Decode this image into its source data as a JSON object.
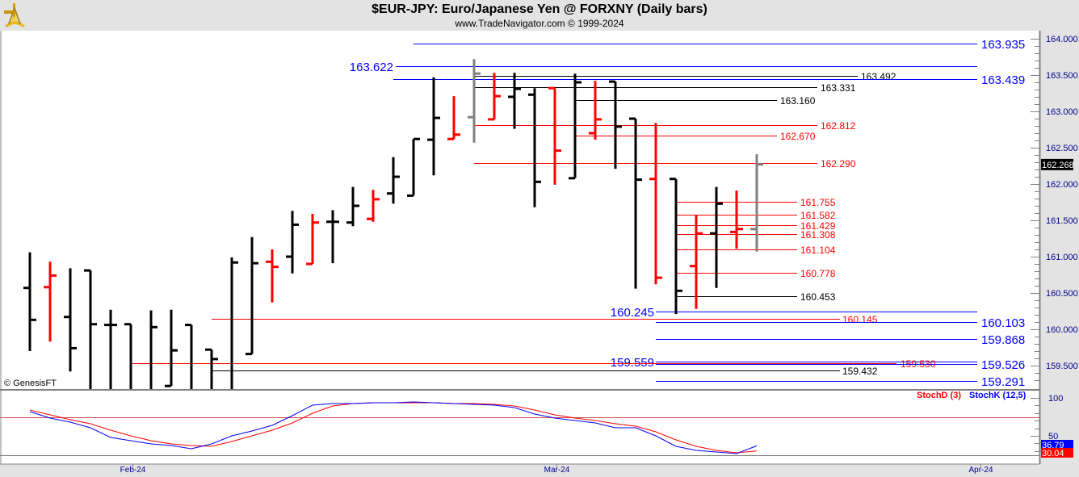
{
  "header": {
    "title": "$EUR-JPY:  Euro/Japanese Yen @ FORXNY  (Daily bars)",
    "subtitle": "www.TradeNavigator.com © 1999-2024",
    "logo_icon": "sextant-logo-icon"
  },
  "watermark": "© GenesisFT",
  "colors": {
    "up": "#000000",
    "down": "#ff0000",
    "current": "#808080",
    "blue": "#0000ff",
    "red": "#ff0000",
    "axis_bg": "#e3e3e3"
  },
  "chart_data": [
    {
      "type": "ohlc",
      "title": "$EUR-JPY:  Euro/Japanese Yen @ FORXNY  (Daily bars)",
      "ylim": [
        159.2,
        164.1
      ],
      "y_ticks": [
        "164.000",
        "163.500",
        "163.000",
        "162.500",
        "162.000",
        "161.500",
        "161.000",
        "160.500",
        "160.000",
        "159.500"
      ],
      "x_ticks": [
        {
          "label": "Feb-24",
          "bar": 5.1
        },
        {
          "label": "Mar-24",
          "bar": 26.1
        },
        {
          "label": "Apr-24",
          "bar": 47.1
        }
      ],
      "last_price": "162.268",
      "bars": [
        {
          "o": 160.57,
          "h": 161.06,
          "l": 159.7,
          "c": 160.13,
          "color": "black"
        },
        {
          "o": 160.58,
          "h": 160.93,
          "l": 159.83,
          "c": 160.74,
          "color": "red"
        },
        {
          "o": 160.17,
          "h": 160.84,
          "l": 159.42,
          "c": 159.74,
          "color": "black"
        },
        {
          "o": 160.81,
          "h": 160.81,
          "l": 159.1,
          "c": 160.07,
          "color": "black"
        },
        {
          "o": 160.06,
          "h": 160.27,
          "l": 159.1,
          "c": 160.06,
          "color": "black"
        },
        {
          "o": 160.07,
          "h": 160.07,
          "l": 159.1,
          "c": 159.15,
          "color": "black"
        },
        {
          "o": 159.15,
          "h": 160.26,
          "l": 159.1,
          "c": 160.03,
          "color": "black"
        },
        {
          "o": 159.22,
          "h": 160.27,
          "l": 159.22,
          "c": 159.71,
          "color": "black"
        },
        {
          "o": 160.06,
          "h": 160.06,
          "l": 159.1,
          "c": 159.15,
          "color": "black"
        },
        {
          "o": 159.72,
          "h": 159.72,
          "l": 159.1,
          "c": 159.59,
          "color": "black"
        },
        {
          "o": 159.15,
          "h": 160.99,
          "l": 159.1,
          "c": 160.92,
          "color": "black"
        },
        {
          "o": 159.66,
          "h": 161.27,
          "l": 159.66,
          "c": 160.91,
          "color": "black"
        },
        {
          "o": 160.93,
          "h": 161.1,
          "l": 160.37,
          "c": 160.86,
          "color": "red"
        },
        {
          "o": 161.0,
          "h": 161.63,
          "l": 160.77,
          "c": 161.44,
          "color": "black"
        },
        {
          "o": 160.9,
          "h": 161.59,
          "l": 160.9,
          "c": 161.47,
          "color": "red"
        },
        {
          "o": 161.48,
          "h": 161.64,
          "l": 160.91,
          "c": 161.48,
          "color": "black"
        },
        {
          "o": 161.47,
          "h": 161.96,
          "l": 161.42,
          "c": 161.7,
          "color": "black"
        },
        {
          "o": 161.52,
          "h": 161.92,
          "l": 161.48,
          "c": 161.79,
          "color": "red"
        },
        {
          "o": 161.87,
          "h": 162.37,
          "l": 161.73,
          "c": 162.1,
          "color": "black"
        },
        {
          "o": 161.84,
          "h": 162.62,
          "l": 161.84,
          "c": 162.62,
          "color": "black"
        },
        {
          "o": 162.61,
          "h": 163.47,
          "l": 162.12,
          "c": 162.91,
          "color": "black"
        },
        {
          "o": 162.62,
          "h": 163.21,
          "l": 162.62,
          "c": 162.68,
          "color": "red"
        },
        {
          "o": 162.92,
          "h": 163.72,
          "l": 162.57,
          "c": 163.52,
          "color": "gray"
        },
        {
          "o": 162.89,
          "h": 163.53,
          "l": 162.89,
          "c": 163.21,
          "color": "red"
        },
        {
          "o": 163.2,
          "h": 163.53,
          "l": 162.76,
          "c": 163.31,
          "color": "black"
        },
        {
          "o": 163.23,
          "h": 163.32,
          "l": 161.68,
          "c": 162.03,
          "color": "black"
        },
        {
          "o": 163.32,
          "h": 163.32,
          "l": 161.99,
          "c": 162.46,
          "color": "red"
        },
        {
          "o": 162.08,
          "h": 163.52,
          "l": 162.08,
          "c": 163.4,
          "color": "black"
        },
        {
          "o": 162.7,
          "h": 163.42,
          "l": 162.61,
          "c": 162.89,
          "color": "red"
        },
        {
          "o": 163.41,
          "h": 163.41,
          "l": 162.21,
          "c": 162.79,
          "color": "black"
        },
        {
          "o": 162.9,
          "h": 162.9,
          "l": 160.56,
          "c": 162.06,
          "color": "black"
        },
        {
          "o": 162.07,
          "h": 162.84,
          "l": 160.62,
          "c": 160.71,
          "color": "red"
        },
        {
          "o": 162.07,
          "h": 162.07,
          "l": 160.21,
          "c": 160.53,
          "color": "black"
        },
        {
          "o": 160.87,
          "h": 161.57,
          "l": 160.28,
          "c": 161.32,
          "color": "red"
        },
        {
          "o": 161.32,
          "h": 161.96,
          "l": 160.57,
          "c": 161.73,
          "color": "black"
        },
        {
          "o": 161.34,
          "h": 161.91,
          "l": 161.11,
          "c": 161.38,
          "color": "red"
        },
        {
          "o": 161.38,
          "h": 162.41,
          "l": 161.07,
          "c": 162.27,
          "color": "gray"
        }
      ],
      "levels": [
        {
          "price": 163.935,
          "label": "163.935",
          "color": "blue"
        },
        {
          "price": 163.622,
          "label": "163.622",
          "color": "blue"
        },
        {
          "price": 163.492,
          "label": "163.492",
          "color": "black"
        },
        {
          "price": 163.439,
          "label": "163.439",
          "color": "blue"
        },
        {
          "price": 163.331,
          "label": "163.331",
          "color": "black"
        },
        {
          "price": 163.16,
          "label": "163.160",
          "color": "black"
        },
        {
          "price": 162.812,
          "label": "162.812",
          "color": "red"
        },
        {
          "price": 162.67,
          "label": "162.670",
          "color": "red"
        },
        {
          "price": 162.29,
          "label": "162.290",
          "color": "red"
        },
        {
          "price": 161.755,
          "label": "161.755",
          "color": "red"
        },
        {
          "price": 161.582,
          "label": "161.582",
          "color": "red"
        },
        {
          "price": 161.429,
          "label": "161.429",
          "color": "red"
        },
        {
          "price": 161.308,
          "label": "161.308",
          "color": "red"
        },
        {
          "price": 161.104,
          "label": "161.104",
          "color": "red"
        },
        {
          "price": 160.778,
          "label": "160.778",
          "color": "red"
        },
        {
          "price": 160.453,
          "label": "160.453",
          "color": "black"
        },
        {
          "price": 160.245,
          "label": "160.245",
          "color": "blue"
        },
        {
          "price": 160.145,
          "label": "160.145",
          "color": "red"
        },
        {
          "price": 160.103,
          "label": "160.103",
          "color": "blue"
        },
        {
          "price": 159.868,
          "label": "159.868",
          "color": "blue"
        },
        {
          "price": 159.559,
          "label": "159.559",
          "color": "blue"
        },
        {
          "price": 159.53,
          "label": "159.530",
          "color": "red"
        },
        {
          "price": 159.526,
          "label": "159.526",
          "color": "blue"
        },
        {
          "price": 159.432,
          "label": "159.432",
          "color": "black"
        },
        {
          "price": 159.291,
          "label": "159.291",
          "color": "blue"
        }
      ]
    },
    {
      "type": "line",
      "ylim": [
        0,
        100
      ],
      "y_ticks": [
        "100",
        "50"
      ],
      "series": [
        {
          "name": "StochD (3)",
          "color": "#ff0000",
          "last": "30.04",
          "values": [
            84.0,
            77.7,
            71.3,
            66.0,
            57.4,
            50.0,
            43.6,
            39.4,
            37.2,
            36.2,
            42.6,
            50.0,
            57.4,
            67.0,
            79.8,
            89.4,
            92.6,
            93.6,
            93.6,
            93.6,
            93.6,
            92.6,
            92.6,
            91.5,
            89.4,
            84.0,
            77.7,
            73.4,
            70.2,
            66.0,
            62.8,
            55.3,
            44.7,
            36.2,
            30.9,
            27.7,
            30.04
          ]
        },
        {
          "name": "StochK (12,5)",
          "color": "#0000ff",
          "last": "36.79",
          "values": [
            81.9,
            73.4,
            68.1,
            60.6,
            47.9,
            43.6,
            39.4,
            37.2,
            33.0,
            39.4,
            50.0,
            56.4,
            63.8,
            76.6,
            90.4,
            92.6,
            92.6,
            93.6,
            93.6,
            94.7,
            93.6,
            92.6,
            91.5,
            90.4,
            87.2,
            78.7,
            73.4,
            70.2,
            67.0,
            60.6,
            60.6,
            50.0,
            36.2,
            30.9,
            28.7,
            26.6,
            36.79
          ]
        }
      ],
      "reference_lines": [
        75,
        25
      ]
    }
  ]
}
